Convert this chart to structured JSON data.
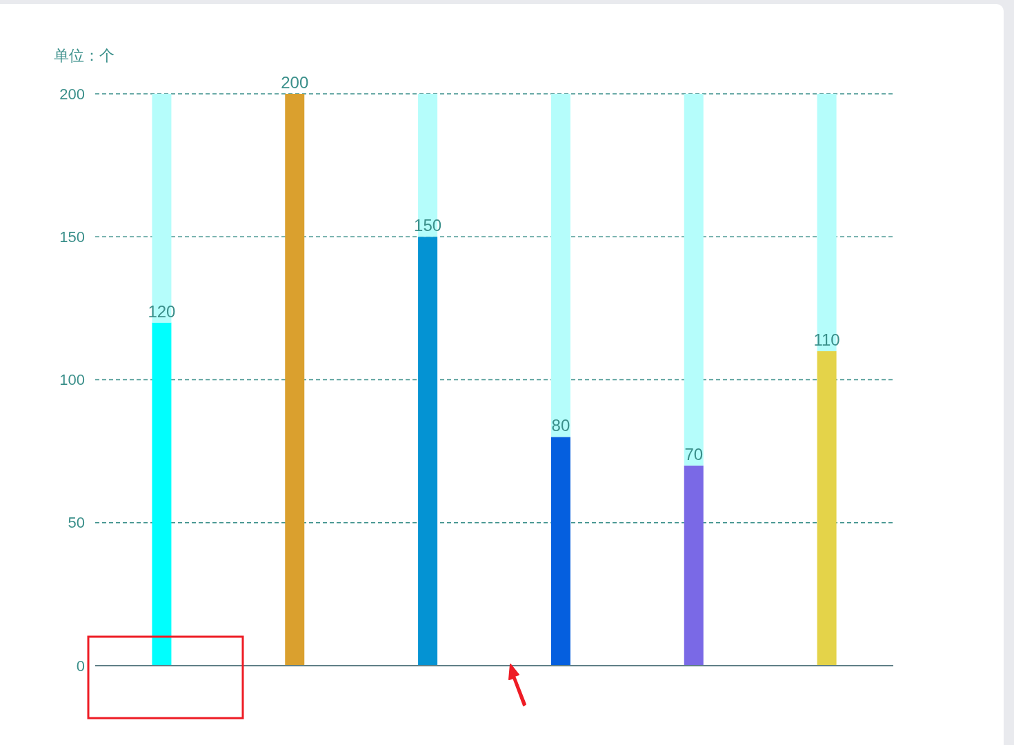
{
  "chart_data": {
    "type": "bar",
    "ylabel": "单位：个",
    "categories": [
      null,
      null,
      null,
      null,
      null,
      null
    ],
    "ylim": [
      0,
      200
    ],
    "yticks": [
      0,
      50,
      100,
      150,
      200
    ],
    "grid": "y",
    "stacked": true,
    "series": [
      {
        "colors": [
          "#00fffe",
          "#daa02e",
          "#0493d3",
          "#055fdf",
          "#7a69e6",
          "#e4d349"
        ],
        "values": [
          120,
          200,
          150,
          80,
          70,
          110
        ],
        "value_labels": [
          "120",
          "200",
          "150",
          "80",
          "70",
          "110"
        ]
      },
      {
        "color": "#b5fdfb",
        "values": [
          80,
          0,
          50,
          120,
          130,
          90
        ]
      }
    ]
  }
}
